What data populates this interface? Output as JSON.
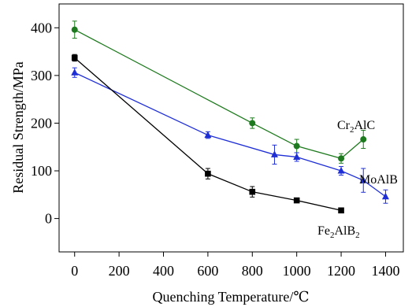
{
  "chart_data": {
    "type": "line",
    "title": "",
    "xlabel": "Quenching Temperature/℃",
    "ylabel": "Residual Strength/MPa",
    "xlim": [
      -70,
      1480
    ],
    "ylim": [
      -70,
      450
    ],
    "x_ticks": [
      0,
      200,
      400,
      600,
      800,
      1000,
      1200,
      1400
    ],
    "y_ticks": [
      0,
      100,
      200,
      300,
      400
    ],
    "grid": false,
    "legend": "inline labels",
    "series": [
      {
        "name": "Cr2AlC",
        "label_parts": [
          "Cr",
          "2",
          "AlC"
        ],
        "color": "#1e7a1e",
        "marker": "circle",
        "x": [
          0,
          800,
          1000,
          1200,
          1300
        ],
        "y": [
          396,
          200,
          152,
          126,
          166
        ],
        "err": [
          18,
          11,
          14,
          10,
          19
        ]
      },
      {
        "name": "MoAlB",
        "label_parts": [
          "MoAlB"
        ],
        "color": "#1f2fd6",
        "marker": "triangle",
        "x": [
          0,
          600,
          900,
          1000,
          1200,
          1300,
          1400
        ],
        "y": [
          306,
          175,
          134,
          129,
          100,
          80,
          46
        ],
        "err": [
          10,
          7,
          20,
          9,
          9,
          25,
          14
        ]
      },
      {
        "name": "Fe2AlB2",
        "label_parts": [
          "Fe",
          "2",
          "AlB",
          "2"
        ],
        "color": "#000000",
        "marker": "square",
        "x": [
          0,
          600,
          800,
          1000,
          1200
        ],
        "y": [
          337,
          94,
          56,
          38,
          17
        ],
        "err": [
          7,
          11,
          11,
          3,
          3
        ]
      }
    ]
  }
}
